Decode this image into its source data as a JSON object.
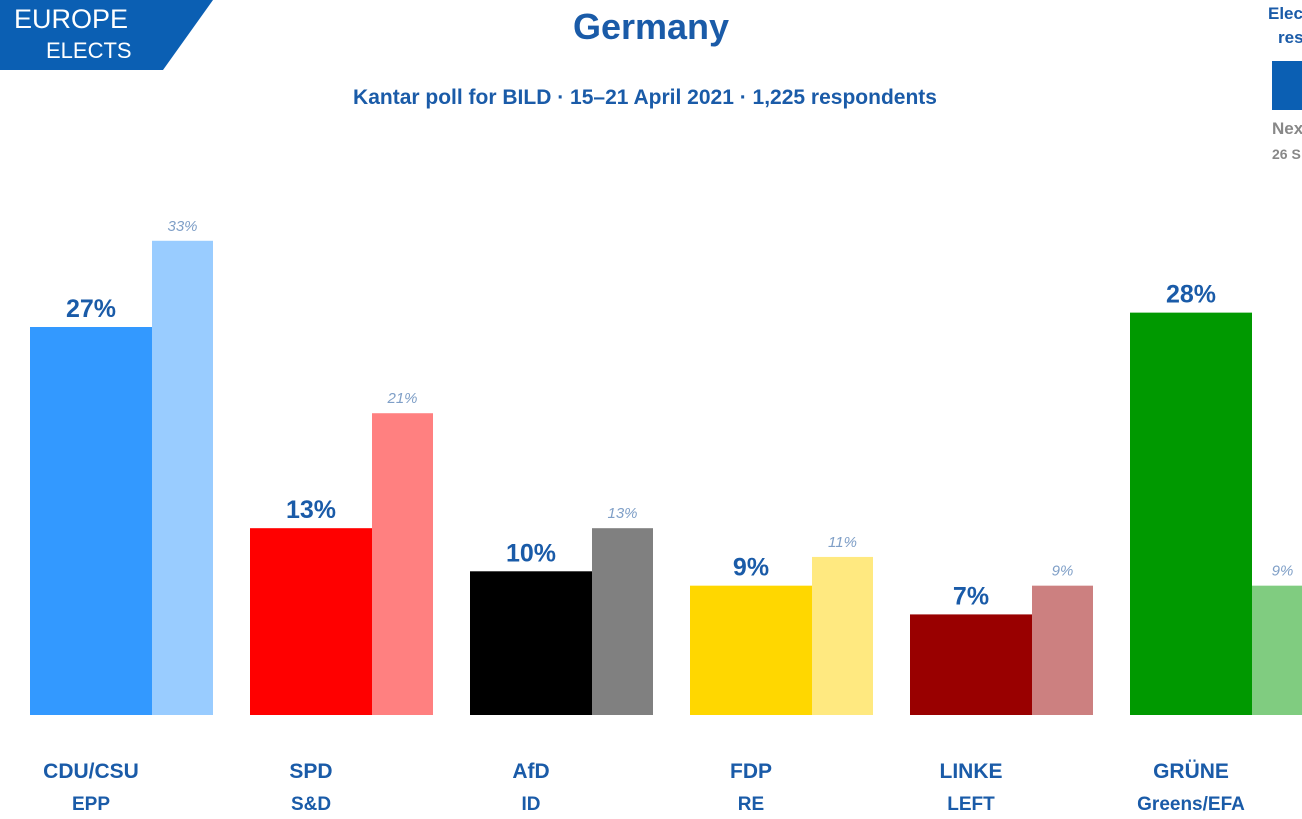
{
  "logo": {
    "line1": "EUROPE",
    "line2": "ELECTS",
    "color": "#0b5fb3"
  },
  "corner": {
    "line1": "Elec",
    "line2": "res",
    "line3": "Nex",
    "line4": "26 S",
    "box_color": "#0b5fb3"
  },
  "chart_data": {
    "type": "bar",
    "title": "Germany",
    "subtitle": "Kantar poll for BILD · 15–21 April 2021 · 1,225 respondents",
    "categories": [
      "CDU/CSU",
      "SPD",
      "AfD",
      "FDP",
      "LINKE",
      "GRÜNE"
    ],
    "groups": [
      "EPP",
      "S&D",
      "ID",
      "RE",
      "LEFT",
      "Greens/EFA"
    ],
    "series": [
      {
        "name": "current",
        "values": [
          27,
          13,
          10,
          9,
          7,
          28
        ],
        "labels": [
          "27%",
          "13%",
          "10%",
          "9%",
          "7%",
          "28%"
        ],
        "colors": [
          "#3399ff",
          "#ff0000",
          "#000000",
          "#ffd700",
          "#990000",
          "#009900"
        ]
      },
      {
        "name": "previous",
        "values": [
          33,
          21,
          13,
          11,
          9,
          9
        ],
        "labels": [
          "33%",
          "21%",
          "13%",
          "11%",
          "9%",
          "9%"
        ],
        "colors": [
          "#99ccff",
          "#ff8080",
          "#808080",
          "#ffe980",
          "#cc8080",
          "#80cc80"
        ]
      }
    ],
    "ylim": [
      0,
      35
    ],
    "grid": false,
    "label_color": "#1a5ba8",
    "prev_label_color": "#7f9fc7"
  }
}
